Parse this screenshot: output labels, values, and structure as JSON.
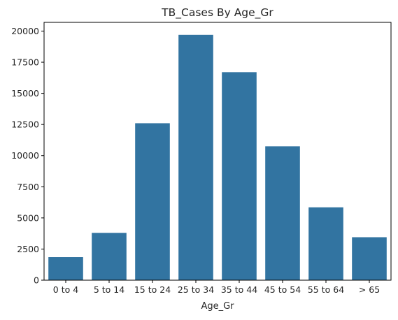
{
  "chart_data": {
    "type": "bar",
    "title": "TB_Cases By Age_Gr",
    "xlabel": "Age_Gr",
    "ylabel": "",
    "categories": [
      "0 to 4",
      "5 to 14",
      "15 to 24",
      "25 to 34",
      "35 to 44",
      "45 to 54",
      "55 to 64",
      "> 65"
    ],
    "values": [
      1850,
      3800,
      12600,
      19700,
      16700,
      10750,
      5850,
      3450
    ],
    "ylim": [
      0,
      20700
    ],
    "yticks": [
      0,
      2500,
      5000,
      7500,
      10000,
      12500,
      15000,
      17500,
      20000
    ],
    "ytick_labels": [
      "0",
      "2500",
      "5000",
      "7500",
      "10000",
      "12500",
      "15000",
      "17500",
      "20000"
    ],
    "grid": false,
    "bar_color": "#3274a1"
  }
}
